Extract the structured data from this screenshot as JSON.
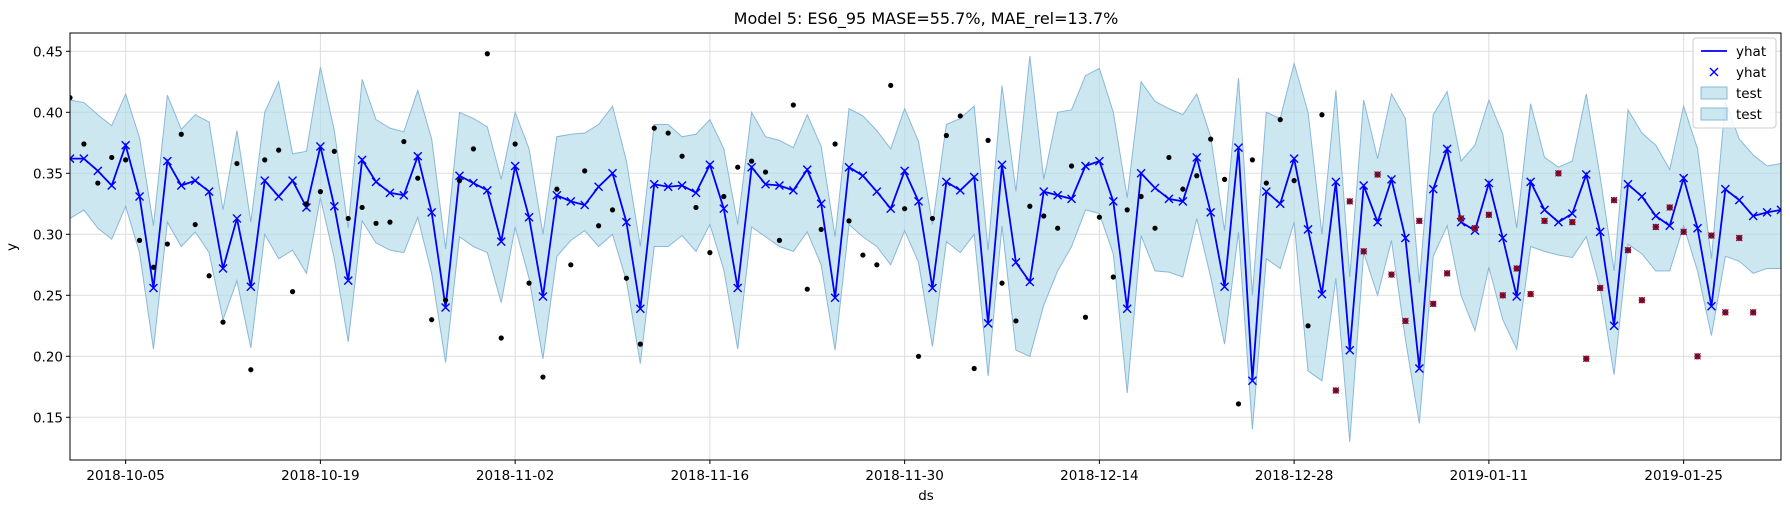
{
  "chart_data": {
    "type": "line",
    "title": "Model 5: ES6_95 MASE=55.7%, MAE_rel=13.7%",
    "xlabel": "ds",
    "ylabel": "y",
    "xlim": [
      "2018-10-01",
      "2019-02-01"
    ],
    "ylim": [
      0.115,
      0.465
    ],
    "x_ticks": [
      {
        "date": "2018-10-05",
        "label": "2018-10-05"
      },
      {
        "date": "2018-10-19",
        "label": "2018-10-19"
      },
      {
        "date": "2018-11-02",
        "label": "2018-11-02"
      },
      {
        "date": "2018-11-16",
        "label": "2018-11-16"
      },
      {
        "date": "2018-11-30",
        "label": "2018-11-30"
      },
      {
        "date": "2018-12-14",
        "label": "2018-12-14"
      },
      {
        "date": "2018-12-28",
        "label": "2018-12-28"
      },
      {
        "date": "2019-01-11",
        "label": "2019-01-11"
      },
      {
        "date": "2019-01-25",
        "label": "2019-01-25"
      }
    ],
    "y_ticks": [
      0.15,
      0.2,
      0.25,
      0.3,
      0.35,
      0.4,
      0.45
    ],
    "y_tick_labels": [
      "0.15",
      "0.20",
      "0.25",
      "0.30",
      "0.35",
      "0.40",
      "0.45"
    ],
    "grid": true,
    "legend_position": "top-right",
    "legend": [
      "yhat",
      "yhat",
      "test",
      "test"
    ],
    "colors": {
      "line": "#0000ff",
      "band_fill": "#add8e6",
      "band_edge": "#8ab8d8",
      "actual": "#000000",
      "test_actual": "#cc0000",
      "grid": "#dddddd"
    },
    "x": [
      "2018-10-01",
      "2018-10-02",
      "2018-10-03",
      "2018-10-04",
      "2018-10-05",
      "2018-10-06",
      "2018-10-07",
      "2018-10-08",
      "2018-10-09",
      "2018-10-10",
      "2018-10-11",
      "2018-10-12",
      "2018-10-13",
      "2018-10-14",
      "2018-10-15",
      "2018-10-16",
      "2018-10-17",
      "2018-10-18",
      "2018-10-19",
      "2018-10-20",
      "2018-10-21",
      "2018-10-22",
      "2018-10-23",
      "2018-10-24",
      "2018-10-25",
      "2018-10-26",
      "2018-10-27",
      "2018-10-28",
      "2018-10-29",
      "2018-10-30",
      "2018-10-31",
      "2018-11-01",
      "2018-11-02",
      "2018-11-03",
      "2018-11-04",
      "2018-11-05",
      "2018-11-06",
      "2018-11-07",
      "2018-11-08",
      "2018-11-09",
      "2018-11-10",
      "2018-11-11",
      "2018-11-12",
      "2018-11-13",
      "2018-11-14",
      "2018-11-15",
      "2018-11-16",
      "2018-11-17",
      "2018-11-18",
      "2018-11-19",
      "2018-11-20",
      "2018-11-21",
      "2018-11-22",
      "2018-11-23",
      "2018-11-24",
      "2018-11-25",
      "2018-11-26",
      "2018-11-27",
      "2018-11-28",
      "2018-11-29",
      "2018-11-30",
      "2018-12-01",
      "2018-12-02",
      "2018-12-03",
      "2018-12-04",
      "2018-12-05",
      "2018-12-06",
      "2018-12-07",
      "2018-12-08",
      "2018-12-09",
      "2018-12-10",
      "2018-12-11",
      "2018-12-12",
      "2018-12-13",
      "2018-12-14",
      "2018-12-15",
      "2018-12-16",
      "2018-12-17",
      "2018-12-18",
      "2018-12-19",
      "2018-12-20",
      "2018-12-21",
      "2018-12-22",
      "2018-12-23",
      "2018-12-24",
      "2018-12-25",
      "2018-12-26",
      "2018-12-27",
      "2018-12-28",
      "2018-12-29",
      "2018-12-30",
      "2018-12-31",
      "2019-01-01",
      "2019-01-02",
      "2019-01-03",
      "2019-01-04",
      "2019-01-05",
      "2019-01-06",
      "2019-01-07",
      "2019-01-08",
      "2019-01-09",
      "2019-01-10",
      "2019-01-11",
      "2019-01-12",
      "2019-01-13",
      "2019-01-14",
      "2019-01-15",
      "2019-01-16",
      "2019-01-17",
      "2019-01-18",
      "2019-01-19",
      "2019-01-20",
      "2019-01-21",
      "2019-01-22",
      "2019-01-23",
      "2019-01-24",
      "2019-01-25",
      "2019-01-26",
      "2019-01-27",
      "2019-01-28",
      "2019-01-29",
      "2019-01-30",
      "2019-01-31",
      "2019-02-01"
    ],
    "series": [
      {
        "name": "yhat",
        "kind": "line-with-x-markers",
        "values": [
          0.362,
          0.362,
          0.352,
          0.34,
          0.373,
          0.331,
          0.256,
          0.36,
          0.34,
          0.344,
          0.335,
          0.272,
          0.313,
          0.257,
          0.344,
          0.331,
          0.344,
          0.322,
          0.372,
          0.323,
          0.262,
          0.361,
          0.343,
          0.334,
          0.332,
          0.364,
          0.318,
          0.24,
          0.348,
          0.342,
          0.336,
          0.294,
          0.356,
          0.314,
          0.249,
          0.332,
          0.327,
          0.324,
          0.339,
          0.35,
          0.31,
          0.239,
          0.341,
          0.339,
          0.34,
          0.334,
          0.357,
          0.321,
          0.256,
          0.355,
          0.341,
          0.34,
          0.336,
          0.353,
          0.325,
          0.248,
          0.355,
          0.348,
          0.335,
          0.321,
          0.352,
          0.327,
          0.256,
          0.343,
          0.336,
          0.347,
          0.227,
          0.357,
          0.277,
          0.261,
          0.335,
          0.332,
          0.329,
          0.356,
          0.36,
          0.327,
          0.239,
          0.35,
          0.338,
          0.329,
          0.327,
          0.363,
          0.318,
          0.257,
          0.371,
          0.18,
          0.335,
          0.325,
          0.362,
          0.304,
          0.251,
          0.343,
          0.205,
          0.34,
          0.31,
          0.345,
          0.297,
          0.19,
          0.337,
          0.37,
          0.31,
          0.303,
          0.342,
          0.297,
          0.249,
          0.343,
          0.32,
          0.31,
          0.317,
          0.349,
          0.302,
          0.225,
          0.341,
          0.331,
          0.315,
          0.307,
          0.346,
          0.305,
          0.241,
          0.337,
          0.328,
          0.315,
          0.318,
          0.32
        ]
      },
      {
        "name": "test",
        "kind": "interval-band",
        "lower": [
          0.313,
          0.32,
          0.305,
          0.296,
          0.323,
          0.285,
          0.206,
          0.31,
          0.29,
          0.302,
          0.285,
          0.23,
          0.262,
          0.207,
          0.3,
          0.28,
          0.287,
          0.268,
          0.33,
          0.28,
          0.212,
          0.311,
          0.293,
          0.287,
          0.285,
          0.314,
          0.268,
          0.195,
          0.298,
          0.29,
          0.285,
          0.244,
          0.306,
          0.264,
          0.198,
          0.282,
          0.295,
          0.303,
          0.29,
          0.3,
          0.262,
          0.194,
          0.29,
          0.29,
          0.299,
          0.286,
          0.308,
          0.271,
          0.206,
          0.306,
          0.298,
          0.29,
          0.286,
          0.302,
          0.275,
          0.205,
          0.308,
          0.298,
          0.29,
          0.275,
          0.303,
          0.277,
          0.208,
          0.294,
          0.285,
          0.3,
          0.184,
          0.307,
          0.205,
          0.2,
          0.242,
          0.27,
          0.29,
          0.32,
          0.317,
          0.284,
          0.17,
          0.299,
          0.27,
          0.269,
          0.265,
          0.313,
          0.265,
          0.21,
          0.302,
          0.14,
          0.28,
          0.272,
          0.31,
          0.188,
          0.18,
          0.264,
          0.13,
          0.285,
          0.25,
          0.295,
          0.214,
          0.145,
          0.282,
          0.307,
          0.25,
          0.221,
          0.273,
          0.23,
          0.206,
          0.29,
          0.286,
          0.283,
          0.281,
          0.298,
          0.256,
          0.185,
          0.292,
          0.284,
          0.27,
          0.27,
          0.307,
          0.27,
          0.217,
          0.282,
          0.278,
          0.268,
          0.272,
          0.272
        ],
        "upper": [
          0.41,
          0.408,
          0.398,
          0.389,
          0.415,
          0.379,
          0.307,
          0.414,
          0.386,
          0.398,
          0.392,
          0.32,
          0.385,
          0.31,
          0.4,
          0.425,
          0.366,
          0.368,
          0.437,
          0.385,
          0.305,
          0.427,
          0.394,
          0.387,
          0.384,
          0.418,
          0.378,
          0.288,
          0.4,
          0.395,
          0.388,
          0.345,
          0.4,
          0.37,
          0.3,
          0.38,
          0.382,
          0.383,
          0.39,
          0.405,
          0.36,
          0.29,
          0.39,
          0.39,
          0.38,
          0.382,
          0.394,
          0.37,
          0.308,
          0.4,
          0.38,
          0.377,
          0.371,
          0.398,
          0.372,
          0.298,
          0.403,
          0.397,
          0.385,
          0.37,
          0.403,
          0.376,
          0.308,
          0.39,
          0.395,
          0.405,
          0.287,
          0.422,
          0.335,
          0.446,
          0.345,
          0.4,
          0.402,
          0.43,
          0.436,
          0.4,
          0.33,
          0.425,
          0.409,
          0.403,
          0.398,
          0.415,
          0.38,
          0.303,
          0.428,
          0.25,
          0.4,
          0.395,
          0.44,
          0.4,
          0.3,
          0.418,
          0.265,
          0.41,
          0.362,
          0.415,
          0.395,
          0.26,
          0.398,
          0.417,
          0.36,
          0.373,
          0.41,
          0.382,
          0.305,
          0.407,
          0.363,
          0.355,
          0.36,
          0.415,
          0.347,
          0.27,
          0.402,
          0.383,
          0.373,
          0.353,
          0.405,
          0.37,
          0.28,
          0.409,
          0.378,
          0.365,
          0.356,
          0.358
        ]
      },
      {
        "name": "actual",
        "kind": "scatter",
        "color": "black",
        "points": [
          [
            "2018-10-01",
            0.412
          ],
          [
            "2018-10-02",
            0.374
          ],
          [
            "2018-10-03",
            0.342
          ],
          [
            "2018-10-04",
            0.363
          ],
          [
            "2018-10-05",
            0.361
          ],
          [
            "2018-10-06",
            0.295
          ],
          [
            "2018-10-07",
            0.273
          ],
          [
            "2018-10-08",
            0.292
          ],
          [
            "2018-10-09",
            0.382
          ],
          [
            "2018-10-10",
            0.308
          ],
          [
            "2018-10-11",
            0.266
          ],
          [
            "2018-10-12",
            0.228
          ],
          [
            "2018-10-13",
            0.358
          ],
          [
            "2018-10-14",
            0.189
          ],
          [
            "2018-10-15",
            0.361
          ],
          [
            "2018-10-16",
            0.369
          ],
          [
            "2018-10-17",
            0.253
          ],
          [
            "2018-10-18",
            0.325
          ],
          [
            "2018-10-19",
            0.335
          ],
          [
            "2018-10-20",
            0.368
          ],
          [
            "2018-10-21",
            0.313
          ],
          [
            "2018-10-22",
            0.322
          ],
          [
            "2018-10-23",
            0.309
          ],
          [
            "2018-10-24",
            0.31
          ],
          [
            "2018-10-25",
            0.376
          ],
          [
            "2018-10-26",
            0.346
          ],
          [
            "2018-10-27",
            0.23
          ],
          [
            "2018-10-28",
            0.246
          ],
          [
            "2018-10-29",
            0.344
          ],
          [
            "2018-10-30",
            0.37
          ],
          [
            "2018-10-31",
            0.448
          ],
          [
            "2018-11-01",
            0.215
          ],
          [
            "2018-11-02",
            0.374
          ],
          [
            "2018-11-03",
            0.26
          ],
          [
            "2018-11-04",
            0.183
          ],
          [
            "2018-11-05",
            0.337
          ],
          [
            "2018-11-06",
            0.275
          ],
          [
            "2018-11-07",
            0.352
          ],
          [
            "2018-11-08",
            0.307
          ],
          [
            "2018-11-09",
            0.32
          ],
          [
            "2018-11-10",
            0.264
          ],
          [
            "2018-11-11",
            0.21
          ],
          [
            "2018-11-12",
            0.387
          ],
          [
            "2018-11-13",
            0.383
          ],
          [
            "2018-11-14",
            0.364
          ],
          [
            "2018-11-15",
            0.322
          ],
          [
            "2018-11-16",
            0.285
          ],
          [
            "2018-11-17",
            0.331
          ],
          [
            "2018-11-18",
            0.355
          ],
          [
            "2018-11-19",
            0.36
          ],
          [
            "2018-11-20",
            0.351
          ],
          [
            "2018-11-21",
            0.295
          ],
          [
            "2018-11-22",
            0.406
          ],
          [
            "2018-11-23",
            0.255
          ],
          [
            "2018-11-24",
            0.304
          ],
          [
            "2018-11-25",
            0.374
          ],
          [
            "2018-11-26",
            0.311
          ],
          [
            "2018-11-27",
            0.283
          ],
          [
            "2018-11-28",
            0.275
          ],
          [
            "2018-11-29",
            0.422
          ],
          [
            "2018-11-30",
            0.321
          ],
          [
            "2018-12-01",
            0.2
          ],
          [
            "2018-12-02",
            0.313
          ],
          [
            "2018-12-03",
            0.381
          ],
          [
            "2018-12-04",
            0.397
          ],
          [
            "2018-12-05",
            0.19
          ],
          [
            "2018-12-06",
            0.377
          ],
          [
            "2018-12-07",
            0.26
          ],
          [
            "2018-12-08",
            0.229
          ],
          [
            "2018-12-09",
            0.323
          ],
          [
            "2018-12-10",
            0.315
          ],
          [
            "2018-12-11",
            0.305
          ],
          [
            "2018-12-12",
            0.356
          ],
          [
            "2018-12-13",
            0.232
          ],
          [
            "2018-12-14",
            0.314
          ],
          [
            "2018-12-15",
            0.265
          ],
          [
            "2018-12-16",
            0.32
          ],
          [
            "2018-12-17",
            0.331
          ],
          [
            "2018-12-18",
            0.305
          ],
          [
            "2018-12-19",
            0.363
          ],
          [
            "2018-12-20",
            0.337
          ],
          [
            "2018-12-21",
            0.348
          ],
          [
            "2018-12-22",
            0.378
          ],
          [
            "2018-12-23",
            0.345
          ],
          [
            "2018-12-24",
            0.161
          ],
          [
            "2018-12-25",
            0.361
          ],
          [
            "2018-12-26",
            0.342
          ],
          [
            "2018-12-27",
            0.394
          ],
          [
            "2018-12-28",
            0.344
          ],
          [
            "2018-12-29",
            0.225
          ],
          [
            "2018-12-30",
            0.398
          ]
        ]
      },
      {
        "name": "test actual",
        "kind": "scatter-x",
        "color": "red",
        "points": [
          [
            "2018-12-31",
            0.172
          ],
          [
            "2019-01-01",
            0.327
          ],
          [
            "2019-01-02",
            0.286
          ],
          [
            "2019-01-03",
            0.349
          ],
          [
            "2019-01-04",
            0.267
          ],
          [
            "2019-01-05",
            0.229
          ],
          [
            "2019-01-06",
            0.311
          ],
          [
            "2019-01-07",
            0.243
          ],
          [
            "2019-01-08",
            0.268
          ],
          [
            "2019-01-09",
            0.313
          ],
          [
            "2019-01-10",
            0.305
          ],
          [
            "2019-01-11",
            0.316
          ],
          [
            "2019-01-12",
            0.25
          ],
          [
            "2019-01-13",
            0.272
          ],
          [
            "2019-01-14",
            0.251
          ],
          [
            "2019-01-15",
            0.311
          ],
          [
            "2019-01-16",
            0.35
          ],
          [
            "2019-01-17",
            0.31
          ],
          [
            "2019-01-18",
            0.198
          ],
          [
            "2019-01-19",
            0.256
          ],
          [
            "2019-01-20",
            0.328
          ],
          [
            "2019-01-21",
            0.287
          ],
          [
            "2019-01-22",
            0.246
          ],
          [
            "2019-01-23",
            0.306
          ],
          [
            "2019-01-24",
            0.322
          ],
          [
            "2019-01-25",
            0.302
          ],
          [
            "2019-01-26",
            0.2
          ],
          [
            "2019-01-27",
            0.299
          ],
          [
            "2019-01-28",
            0.236
          ],
          [
            "2019-01-29",
            0.297
          ],
          [
            "2019-01-30",
            0.236
          ]
        ]
      }
    ]
  }
}
